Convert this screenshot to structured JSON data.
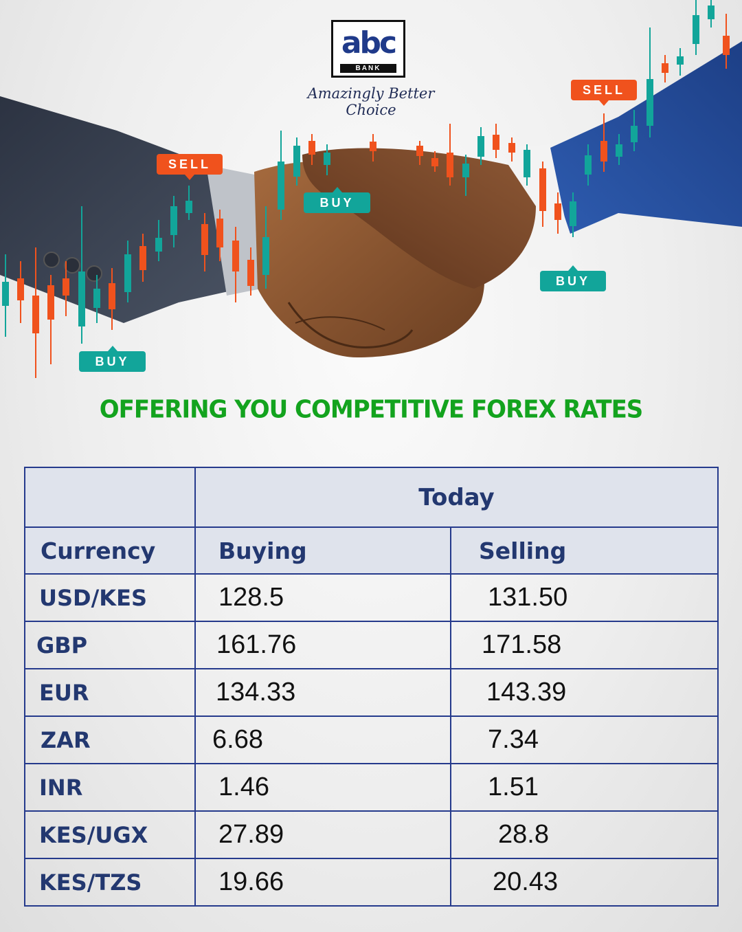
{
  "brand": {
    "logo_text": "abc",
    "logo_sub": "BANK",
    "tagline": "Amazingly Better Choice"
  },
  "hero": {
    "tags": [
      "SELL",
      "SELL",
      "BUY",
      "BUY",
      "BUY"
    ],
    "colors": {
      "sell": "#f0521d",
      "buy": "#12a59a"
    }
  },
  "headline": "OFFERING YOU COMPETITIVE FOREX RATES",
  "table": {
    "group_header": "Today",
    "columns": [
      "Currency",
      "Buying",
      "Selling"
    ],
    "rows": [
      [
        "USD/KES",
        "128.5",
        "131.50"
      ],
      [
        "GBP",
        "161.76",
        "171.58"
      ],
      [
        "EUR",
        "134.33",
        "143.39"
      ],
      [
        "ZAR",
        "6.68",
        "7.34"
      ],
      [
        "INR",
        "1.46",
        "1.51"
      ],
      [
        "KES/UGX",
        "27.89",
        "28.8"
      ],
      [
        "KES/TZS",
        "19.66",
        "20.43"
      ]
    ]
  },
  "colors": {
    "headline": "#13a31e",
    "table_border": "#253a8c",
    "table_text": "#233870"
  }
}
